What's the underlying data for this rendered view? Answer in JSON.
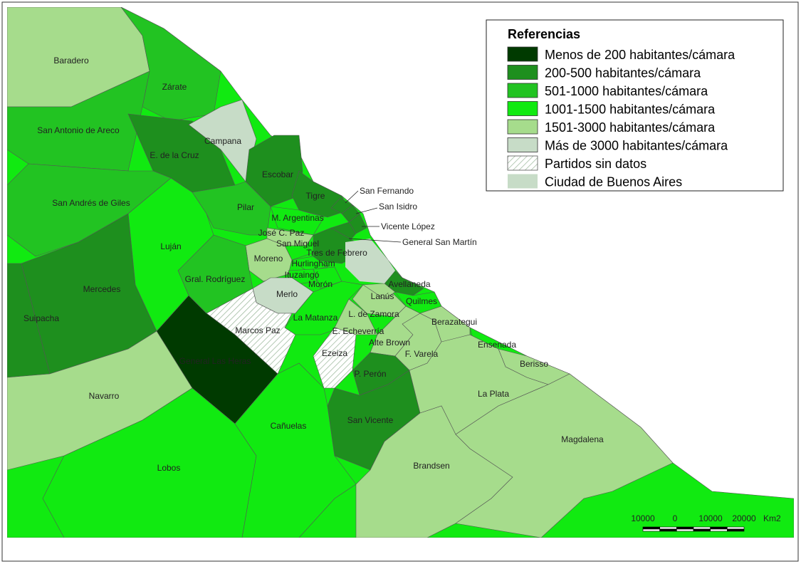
{
  "legend": {
    "title": "Referencias",
    "items": [
      {
        "label": "Menos de 200 habitantes/cámara",
        "color": "#003a00"
      },
      {
        "label": "200-500 habitantes/cámara",
        "color": "#1e8f1e"
      },
      {
        "label": "501-1000 habitantes/cámara",
        "color": "#22c322"
      },
      {
        "label": "1001-1500 habitantes/cámara",
        "color": "#11ea11"
      },
      {
        "label": "1501-3000 habitantes/cámara",
        "color": "#a6dc8c"
      },
      {
        "label": "Más de 3000 habitantes/cámara",
        "color": "#c7dcc7"
      },
      {
        "label": "Partidos sin datos",
        "color": "#ffffff",
        "pattern": "hatch"
      },
      {
        "label": "Ciudad de Buenos Aires",
        "color": "#c7dcc7"
      }
    ]
  },
  "regions": [
    {
      "name": "Baradero",
      "class": 4
    },
    {
      "name": "Zárate",
      "class": 2
    },
    {
      "name": "San Antonio de Areco",
      "class": 2
    },
    {
      "name": "E. de la Cruz",
      "class": 1
    },
    {
      "name": "Campana",
      "class": 5
    },
    {
      "name": "Escobar",
      "class": 1
    },
    {
      "name": "Tigre",
      "class": 1
    },
    {
      "name": "San Fernando",
      "class": 1
    },
    {
      "name": "San Isidro",
      "class": 1
    },
    {
      "name": "Vicente López",
      "class": 1
    },
    {
      "name": "General San Martín",
      "class": 1
    },
    {
      "name": "Pilar",
      "class": 2
    },
    {
      "name": "M. Argentinas",
      "class": 3
    },
    {
      "name": "José C. Paz",
      "class": 4
    },
    {
      "name": "San Miguel",
      "class": 3
    },
    {
      "name": "Tres de Febrero",
      "class": 1
    },
    {
      "name": "Moreno",
      "class": 4
    },
    {
      "name": "Hurlingham",
      "class": 3
    },
    {
      "name": "Ituzaingó",
      "class": 3
    },
    {
      "name": "Morón",
      "class": 3
    },
    {
      "name": "Merlo",
      "class": 5
    },
    {
      "name": "Marcos Paz",
      "class": 6
    },
    {
      "name": "General Las Heras",
      "class": 0
    },
    {
      "name": "La Matanza",
      "class": 3
    },
    {
      "name": "Gral. Rodríguez",
      "class": 2
    },
    {
      "name": "Luján",
      "class": 3
    },
    {
      "name": "San Andrés de Giles",
      "class": 2
    },
    {
      "name": "Mercedes",
      "class": 1
    },
    {
      "name": "Suipacha",
      "class": 1
    },
    {
      "name": "Navarro",
      "class": 4
    },
    {
      "name": "Lobos",
      "class": 3
    },
    {
      "name": "Cañuelas",
      "class": 3
    },
    {
      "name": "Ezeiza",
      "class": 6
    },
    {
      "name": "E. Echeverría",
      "class": 4
    },
    {
      "name": "L. de Zamora",
      "class": 4
    },
    {
      "name": "Lanús",
      "class": 4
    },
    {
      "name": "Avellaneda",
      "class": 1
    },
    {
      "name": "Quilmes",
      "class": 3
    },
    {
      "name": "Alte Brown",
      "class": 4
    },
    {
      "name": "F. Varela",
      "class": 4
    },
    {
      "name": "Berazategui",
      "class": 4
    },
    {
      "name": "P. Perón",
      "class": 1
    },
    {
      "name": "San Vicente",
      "class": 1
    },
    {
      "name": "Ensenada",
      "class": 3
    },
    {
      "name": "Berisso",
      "class": 4
    },
    {
      "name": "La Plata",
      "class": 4
    },
    {
      "name": "Brandsen",
      "class": 4
    },
    {
      "name": "Magdalena",
      "class": 4
    }
  ],
  "scale": {
    "labels": [
      "10000",
      "0",
      "10000",
      "20000"
    ],
    "unit": "Km2"
  }
}
